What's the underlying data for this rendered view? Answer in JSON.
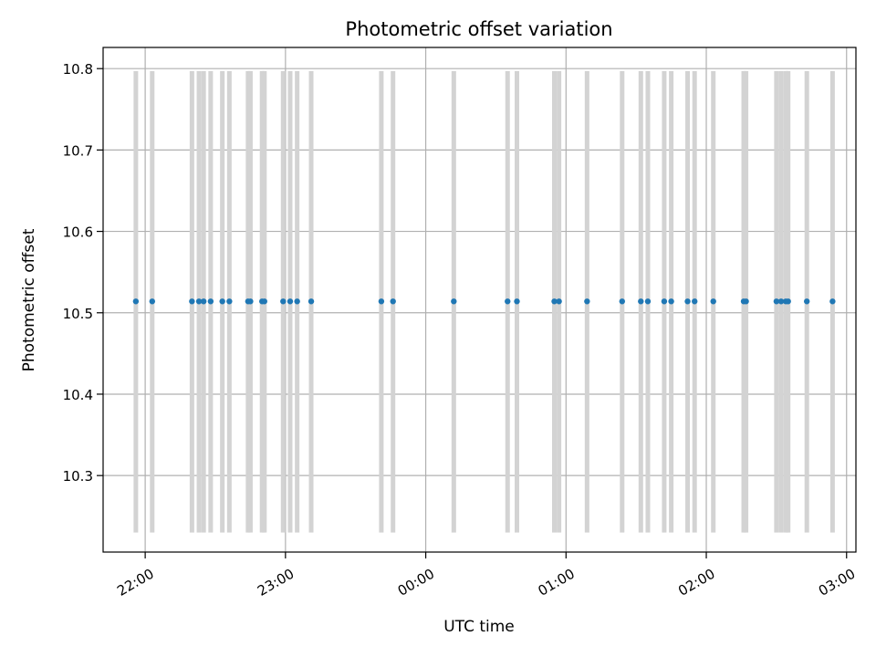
{
  "chart_data": {
    "type": "scatter",
    "title": "Photometric offset variation",
    "xlabel": "UTC time",
    "ylabel": "Photometric offset",
    "xlim": [
      "21:42",
      "03:04"
    ],
    "ylim": [
      10.206,
      10.826
    ],
    "xticks": [
      "22:00",
      "23:00",
      "00:00",
      "01:00",
      "02:00",
      "03:00"
    ],
    "yticks": [
      "10.3",
      "10.4",
      "10.5",
      "10.6",
      "10.7",
      "10.8"
    ],
    "grid": true,
    "series": [
      {
        "marker_color": "#1f77b4",
        "x": [
          "21:56",
          "22:03",
          "22:20",
          "22:23",
          "22:25",
          "22:28",
          "22:33",
          "22:36",
          "22:44",
          "22:45",
          "22:50",
          "22:51",
          "22:59",
          "23:02",
          "23:05",
          "23:11",
          "23:41",
          "23:46",
          "00:12",
          "00:35",
          "00:39",
          "00:55",
          "00:57",
          "01:09",
          "01:24",
          "01:32",
          "01:35",
          "01:42",
          "01:45",
          "01:52",
          "01:55",
          "02:03",
          "02:16",
          "02:17",
          "02:30",
          "02:32",
          "02:34",
          "02:35",
          "02:43",
          "02:54"
        ],
        "y": [
          10.514,
          10.514,
          10.514,
          10.514,
          10.514,
          10.514,
          10.514,
          10.514,
          10.514,
          10.514,
          10.514,
          10.514,
          10.514,
          10.514,
          10.514,
          10.514,
          10.514,
          10.514,
          10.514,
          10.514,
          10.514,
          10.514,
          10.514,
          10.514,
          10.514,
          10.514,
          10.514,
          10.514,
          10.514,
          10.514,
          10.514,
          10.514,
          10.514,
          10.514,
          10.514,
          10.514,
          10.514,
          10.514,
          10.514,
          10.514
        ]
      }
    ],
    "vertical_bands": {
      "color": "#d3d3d3",
      "y_range": [
        10.23,
        10.797
      ],
      "x": [
        "21:56",
        "22:03",
        "22:20",
        "22:23",
        "22:25",
        "22:28",
        "22:33",
        "22:36",
        "22:44",
        "22:45",
        "22:50",
        "22:51",
        "22:59",
        "23:02",
        "23:05",
        "23:11",
        "23:41",
        "23:46",
        "00:12",
        "00:35",
        "00:39",
        "00:55",
        "00:57",
        "01:09",
        "01:24",
        "01:32",
        "01:35",
        "01:42",
        "01:45",
        "01:52",
        "01:55",
        "02:03",
        "02:16",
        "02:17",
        "02:30",
        "02:32",
        "02:34",
        "02:35",
        "02:43",
        "02:54"
      ]
    }
  }
}
